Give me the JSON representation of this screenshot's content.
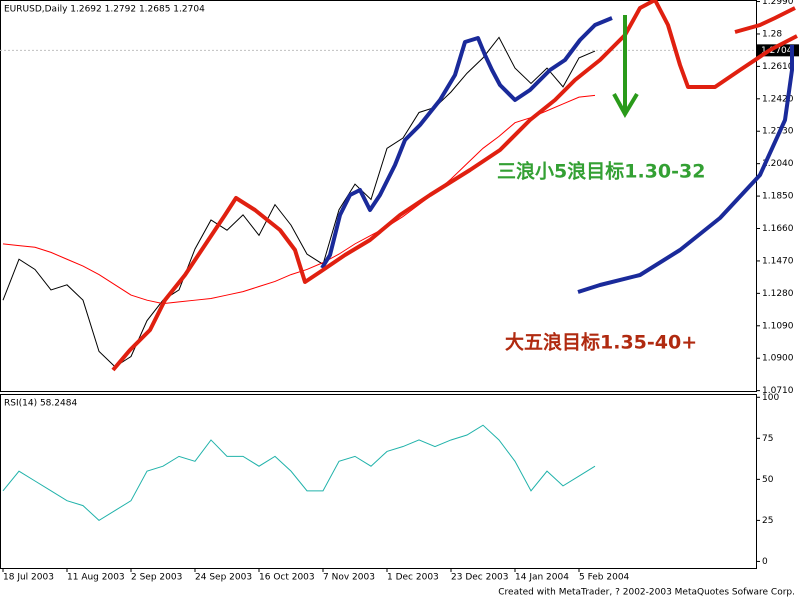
{
  "chart_data": [
    {
      "type": "line",
      "title": "EURUSD,Daily  1.2692  1.2792  1.2685  1.2704",
      "categories": [
        "18 Jul 2003",
        null,
        null,
        null,
        "11 Aug 2003",
        null,
        null,
        null,
        "2 Sep 2003",
        null,
        null,
        null,
        "24 Sep 2003",
        null,
        null,
        null,
        "16 Oct 2003",
        null,
        null,
        null,
        "7 Nov 2003",
        null,
        null,
        null,
        "1 Dec 2003",
        null,
        null,
        null,
        "23 Dec 2003",
        null,
        null,
        null,
        "14 Jan 2004",
        null,
        null,
        null,
        "5 Feb 2004",
        null,
        null,
        null,
        null,
        null,
        null,
        null,
        null,
        null,
        null,
        null
      ],
      "series": [
        {
          "color": "#000000",
          "values": [
            1.124,
            1.148,
            1.142,
            1.13,
            1.133,
            1.124,
            1.094,
            1.085,
            1.091,
            1.112,
            1.124,
            1.13,
            1.154,
            1.171,
            1.165,
            1.174,
            1.162,
            1.18,
            1.168,
            1.151,
            1.145,
            1.177,
            1.192,
            1.183,
            1.213,
            1.219,
            1.234,
            1.237,
            1.246,
            1.257,
            1.266,
            1.278,
            1.26,
            1.251,
            1.26,
            1.249,
            1.266,
            1.27,
            null,
            null,
            null,
            null,
            null,
            null,
            null,
            null,
            null,
            null
          ]
        },
        {
          "color": "#ff0000",
          "values": [
            1.157,
            1.156,
            1.155,
            1.152,
            1.148,
            1.144,
            1.139,
            1.133,
            1.127,
            1.124,
            1.122,
            1.123,
            1.124,
            1.125,
            1.127,
            1.129,
            1.132,
            1.135,
            1.139,
            1.142,
            1.146,
            1.151,
            1.157,
            1.162,
            1.167,
            1.173,
            1.18,
            1.187,
            1.195,
            1.204,
            1.213,
            1.22,
            1.228,
            1.231,
            1.235,
            1.239,
            1.243,
            1.244,
            null,
            null,
            null,
            null,
            null,
            null,
            null,
            null,
            null,
            null
          ]
        }
      ],
      "ylim": [
        1.0702,
        1.2999
      ],
      "yticks": [
        {
          "value": 1.299,
          "label": "1.2990"
        },
        1.28,
        {
          "value": 1.261,
          "label": "1.2610"
        },
        {
          "value": 1.242,
          "label": "1.2420"
        },
        {
          "value": 1.223,
          "label": "1.2230"
        },
        {
          "value": 1.204,
          "label": "1.2040"
        },
        {
          "value": 1.185,
          "label": "1.1850"
        },
        {
          "value": 1.166,
          "label": "1.1660"
        },
        {
          "value": 1.147,
          "label": "1.1470"
        },
        {
          "value": 1.128,
          "label": "1.1280"
        },
        {
          "value": 1.109,
          "label": "1.1090"
        },
        {
          "value": 1.09,
          "label": "1.0900"
        },
        {
          "value": 1.071,
          "label": "1.0710"
        }
      ],
      "last_price": 1.2704,
      "annotations": [
        "三浪小5浪目标1.30-32",
        "大五浪目标1.35-40+"
      ]
    },
    {
      "type": "line",
      "title": "RSI(14)  58.2484",
      "series": [
        {
          "color": "#20b2aa",
          "values": [
            43,
            55,
            49,
            43,
            37,
            34,
            25,
            31,
            37,
            55,
            58,
            64,
            61,
            74,
            64,
            64,
            58,
            64,
            55,
            43,
            43,
            61,
            64,
            58,
            67,
            70,
            74,
            70,
            74,
            77,
            83,
            74,
            61,
            43,
            55,
            46,
            52,
            58
          ]
        }
      ],
      "ylim": [
        -4,
        102
      ],
      "yticks": [
        0,
        25,
        50,
        75,
        100
      ]
    }
  ],
  "credit": "Created with MetaTrader, ? 2002-2003 MetaQuotes Sofware Corp."
}
